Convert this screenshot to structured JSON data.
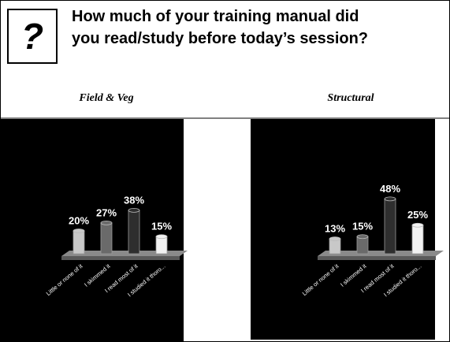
{
  "question_icon": "?",
  "title": "How much of your training manual did you read/study before today’s session?",
  "chart_data": [
    {
      "type": "bar",
      "title": "Field & Veg",
      "categories": [
        "Little or none of it",
        "I skimmed it",
        "I read most of it",
        "I studied it thoro..."
      ],
      "values": [
        20,
        27,
        38,
        15
      ],
      "value_labels": [
        "20%",
        "27%",
        "38%",
        "15%"
      ],
      "colors": [
        "#c8c8c8",
        "#6a6a6a",
        "#2e2e2e",
        "#f2f2f2"
      ]
    },
    {
      "type": "bar",
      "title": "Structural",
      "categories": [
        "Little or none of it",
        "I skimmed it",
        "I read most of it",
        "I studied it thoro..."
      ],
      "values": [
        13,
        15,
        48,
        25
      ],
      "value_labels": [
        "13%",
        "15%",
        "48%",
        "25%"
      ],
      "colors": [
        "#c8c8c8",
        "#6a6a6a",
        "#2e2e2e",
        "#f2f2f2"
      ]
    }
  ]
}
